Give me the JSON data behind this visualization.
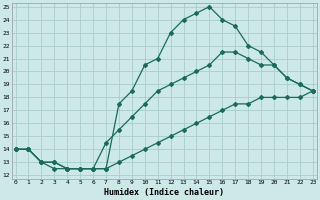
{
  "xlabel": "Humidex (Indice chaleur)",
  "bg_color": "#cce8e8",
  "grid_color": "#aacccc",
  "line_color": "#1a6b5a",
  "xmin": 0,
  "xmax": 23,
  "ymin": 12,
  "ymax": 25,
  "line1_x": [
    0,
    1,
    2,
    3,
    4,
    5,
    6,
    7,
    8,
    9,
    10,
    11,
    12,
    13,
    14,
    15,
    16,
    17,
    18,
    19,
    20,
    21,
    22,
    23
  ],
  "line1_y": [
    14,
    14,
    13,
    12.5,
    12.5,
    12.5,
    12.5,
    12.5,
    17.5,
    18.5,
    20.5,
    21.0,
    23.0,
    24.0,
    24.5,
    25.0,
    24.0,
    23.5,
    22.0,
    21.5,
    20.5,
    19.5,
    19.0,
    18.5
  ],
  "line2_x": [
    0,
    1,
    2,
    3,
    4,
    5,
    6,
    7,
    8,
    9,
    10,
    11,
    12,
    13,
    14,
    15,
    16,
    17,
    18,
    19,
    20,
    21,
    22,
    23
  ],
  "line2_y": [
    14,
    14,
    13,
    13,
    12.5,
    12.5,
    12.5,
    14.5,
    15.5,
    16.5,
    17.5,
    18.5,
    19.0,
    19.5,
    20.0,
    20.5,
    21.5,
    21.5,
    21.0,
    20.5,
    20.5,
    19.5,
    19.0,
    18.5
  ],
  "line3_x": [
    0,
    1,
    2,
    3,
    4,
    5,
    6,
    7,
    8,
    9,
    10,
    11,
    12,
    13,
    14,
    15,
    16,
    17,
    18,
    19,
    20,
    21,
    22,
    23
  ],
  "line3_y": [
    14,
    14,
    13,
    13,
    12.5,
    12.5,
    12.5,
    12.5,
    13.0,
    13.5,
    14.0,
    14.5,
    15.0,
    15.5,
    16.0,
    16.5,
    17.0,
    17.5,
    17.5,
    18.0,
    18.0,
    18.0,
    18.0,
    18.5
  ]
}
